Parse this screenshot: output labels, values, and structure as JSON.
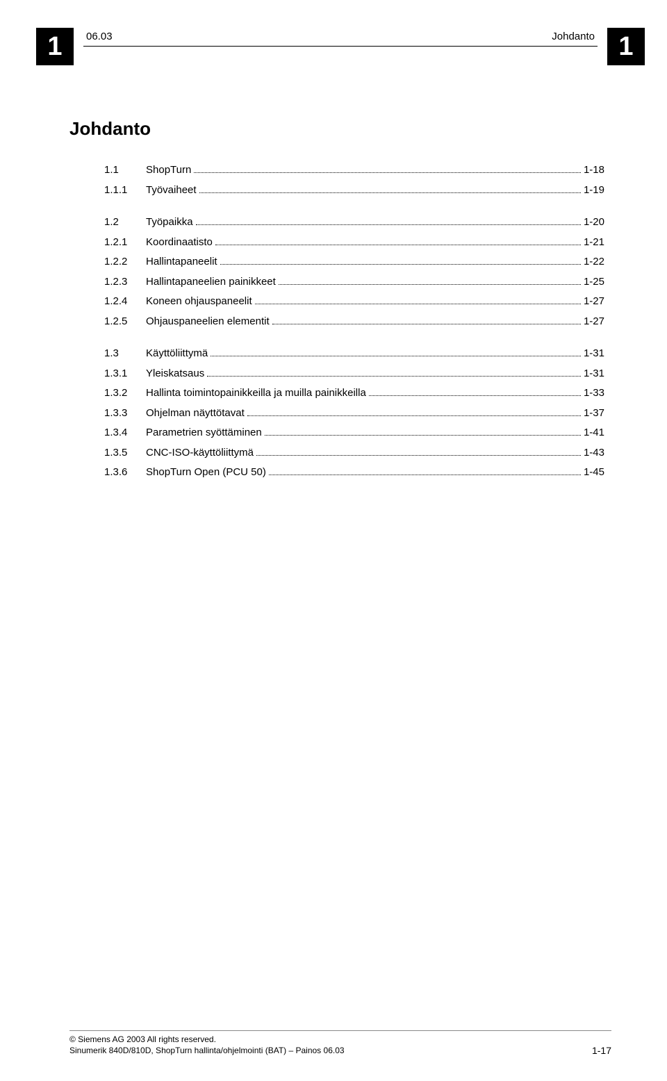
{
  "header": {
    "badge": "1",
    "code": "06.03",
    "right_label": "Johdanto"
  },
  "title": "Johdanto",
  "toc_groups": [
    [
      {
        "num": "1.1",
        "label": "ShopTurn",
        "page": "1-18"
      },
      {
        "num": "1.1.1",
        "label": "Työvaiheet",
        "page": "1-19"
      }
    ],
    [
      {
        "num": "1.2",
        "label": "Työpaikka",
        "page": "1-20"
      },
      {
        "num": "1.2.1",
        "label": "Koordinaatisto",
        "page": "1-21"
      },
      {
        "num": "1.2.2",
        "label": "Hallintapaneelit",
        "page": "1-22"
      },
      {
        "num": "1.2.3",
        "label": "Hallintapaneelien painikkeet",
        "page": "1-25"
      },
      {
        "num": "1.2.4",
        "label": "Koneen ohjauspaneelit",
        "page": "1-27"
      },
      {
        "num": "1.2.5",
        "label": "Ohjauspaneelien elementit",
        "page": "1-27"
      }
    ],
    [
      {
        "num": "1.3",
        "label": "Käyttöliittymä",
        "page": "1-31"
      },
      {
        "num": "1.3.1",
        "label": "Yleiskatsaus",
        "page": "1-31"
      },
      {
        "num": "1.3.2",
        "label": "Hallinta toimintopainikkeilla ja muilla painikkeilla",
        "page": "1-33"
      },
      {
        "num": "1.3.3",
        "label": "Ohjelman näyttötavat",
        "page": "1-37"
      },
      {
        "num": "1.3.4",
        "label": "Parametrien syöttäminen",
        "page": "1-41"
      },
      {
        "num": "1.3.5",
        "label": "CNC-ISO-käyttöliittymä",
        "page": "1-43"
      },
      {
        "num": "1.3.6",
        "label": "ShopTurn Open (PCU 50)",
        "page": "1-45"
      }
    ]
  ],
  "footer": {
    "line1": "© Siemens AG 2003 All rights reserved.",
    "line2": "Sinumerik 840D/810D, ShopTurn hallinta/ohjelmointi (BAT) – Painos 06.03",
    "page_number": "1-17"
  }
}
